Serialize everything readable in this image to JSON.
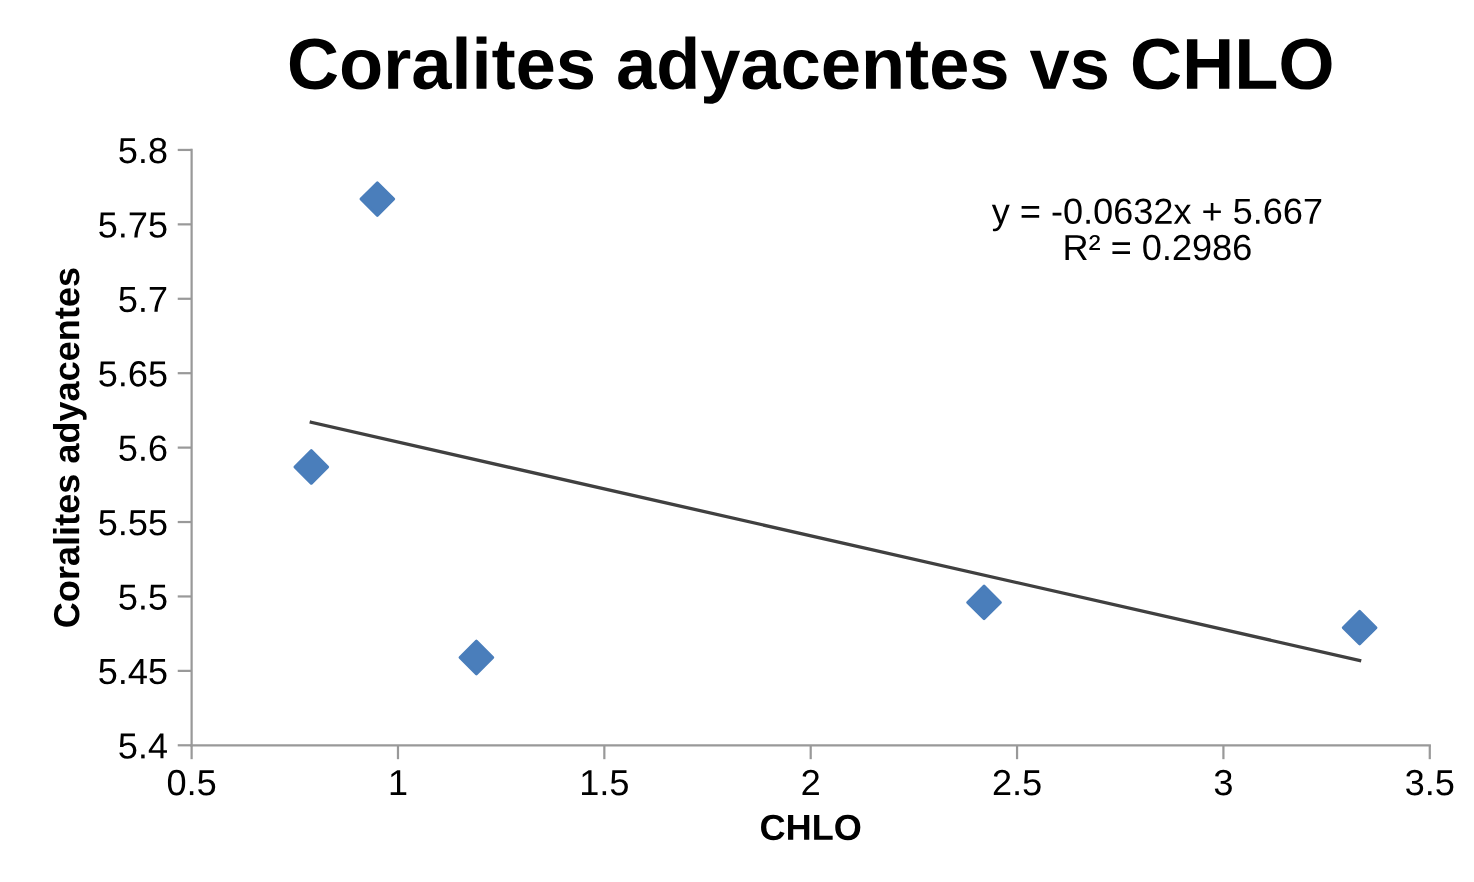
{
  "chart_data": {
    "type": "scatter",
    "title": "Coralites adyacentes vs CHLO",
    "xlabel": "CHLO",
    "ylabel": "Coralites adyacentes",
    "series": [
      {
        "color": "#4a7ebb",
        "marker": "diamond",
        "x": [
          0.79,
          0.95,
          1.19,
          2.42,
          3.33
        ],
        "values": [
          5.587,
          5.767,
          5.459,
          5.496,
          5.479
        ]
      },
      {
        "type": "line",
        "color": "#404040",
        "marker": "none",
        "x": [
          0.79,
          3.33
        ],
        "values": [
          5.617,
          5.457
        ]
      }
    ],
    "annotations": [
      "y = -0.0632x + 5.667\nR² = 0.2986"
    ],
    "xlim": [
      0.5,
      3.5
    ],
    "xticks": [
      0.5,
      1,
      1.5,
      2,
      2.5,
      3,
      3.5
    ],
    "ylim": [
      5.4,
      5.8
    ],
    "yticks": [
      5.4,
      5.45,
      5.5,
      5.55,
      5.6,
      5.65,
      5.7,
      5.75,
      5.8
    ],
    "grid": false,
    "legend": false
  }
}
